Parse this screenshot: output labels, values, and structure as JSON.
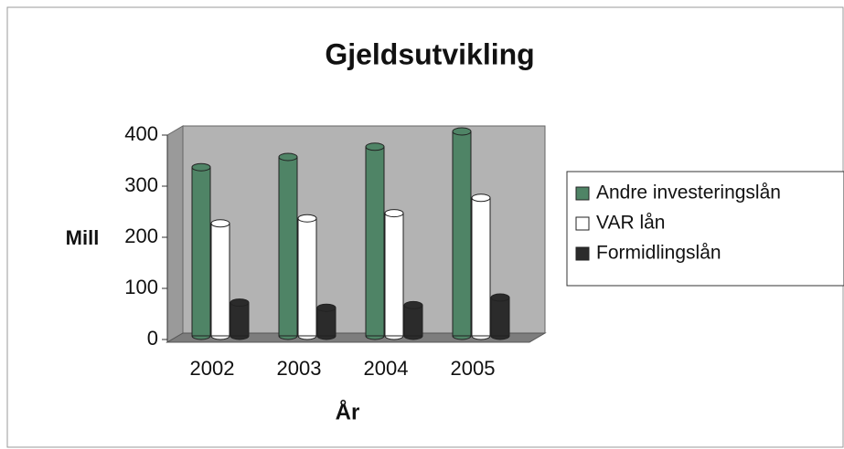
{
  "chart_data": {
    "type": "bar",
    "title": "Gjeldsutvikling",
    "x_label": "År",
    "y_label": "Mill",
    "categories": [
      "2002",
      "2003",
      "2004",
      "2005"
    ],
    "series": [
      {
        "name": "Andre investeringslån",
        "color": "#4f8466",
        "values": [
          330,
          350,
          370,
          400
        ]
      },
      {
        "name": "VAR lån",
        "color": "#ffffff",
        "values": [
          220,
          230,
          240,
          270
        ]
      },
      {
        "name": "Formidlingslån",
        "color": "#2b2b2b",
        "values": [
          65,
          55,
          60,
          75
        ]
      }
    ],
    "ylim": [
      0,
      400
    ],
    "yticks": [
      0,
      100,
      200,
      300,
      400
    ],
    "legend": "right"
  }
}
